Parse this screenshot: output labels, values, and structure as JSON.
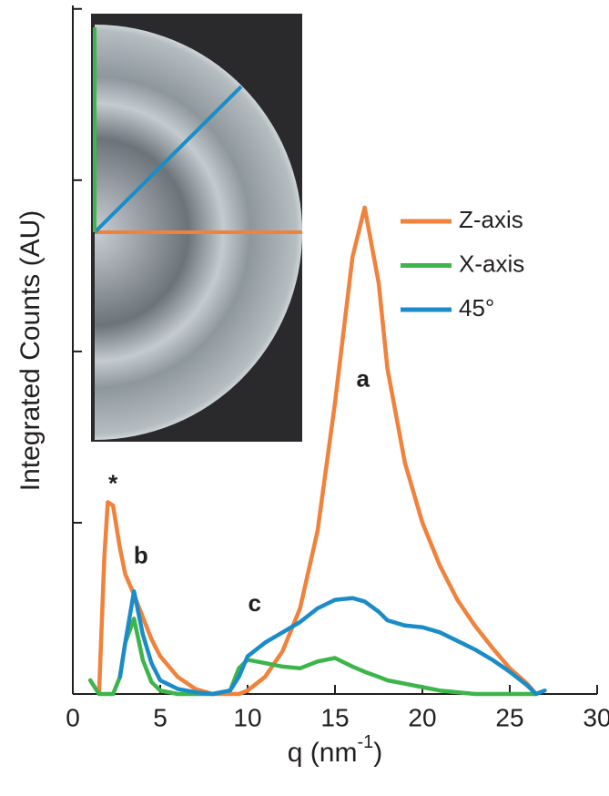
{
  "chart_data": {
    "type": "line",
    "xlabel": [
      "q (nm",
      "-1",
      ")"
    ],
    "ylabel": "Integrated Counts (AU)",
    "x": [
      1,
      1.5,
      1.8,
      2,
      2.3,
      2.7,
      3,
      3.5,
      4,
      4.5,
      5,
      6,
      7,
      8,
      9,
      9.5,
      10,
      11,
      12,
      13,
      14,
      15,
      16,
      16.7,
      17.5,
      18,
      19,
      20,
      21,
      22,
      23,
      24,
      25,
      26,
      26.5,
      27
    ],
    "series": [
      {
        "name": "Z-axis",
        "color": "#f0823c",
        "values": [
          null,
          0.0,
          0.8,
          1.12,
          1.1,
          0.85,
          0.7,
          0.58,
          0.45,
          0.32,
          0.22,
          0.1,
          0.03,
          0.0,
          0.0,
          0.0,
          0.02,
          0.1,
          0.25,
          0.5,
          0.95,
          1.7,
          2.55,
          2.84,
          2.4,
          1.9,
          1.35,
          1.0,
          0.75,
          0.55,
          0.4,
          0.27,
          0.15,
          0.06,
          0.0,
          null
        ]
      },
      {
        "name": "X-axis",
        "color": "#3db54a",
        "values": [
          0.08,
          0.0,
          0.0,
          0.0,
          0.0,
          0.1,
          0.3,
          0.44,
          0.2,
          0.07,
          0.02,
          0.0,
          0.0,
          0.0,
          0.02,
          0.15,
          0.2,
          0.18,
          0.16,
          0.15,
          0.19,
          0.21,
          0.16,
          0.13,
          0.1,
          0.08,
          0.06,
          0.04,
          0.02,
          0.01,
          0.0,
          0.0,
          0.0,
          0.0,
          0.0,
          null
        ]
      },
      {
        "name": "45°",
        "color": "#1b8cc8",
        "values": [
          null,
          null,
          null,
          null,
          null,
          0.1,
          0.3,
          0.6,
          0.35,
          0.18,
          0.08,
          0.03,
          0.01,
          0.0,
          0.02,
          0.1,
          0.22,
          0.3,
          0.36,
          0.42,
          0.5,
          0.55,
          0.56,
          0.54,
          0.48,
          0.43,
          0.4,
          0.39,
          0.36,
          0.31,
          0.26,
          0.2,
          0.13,
          0.05,
          0.0,
          0.02
        ]
      }
    ],
    "xlim": [
      0,
      30
    ],
    "xticks": [
      0,
      5,
      10,
      15,
      20,
      25,
      30
    ],
    "ylim": [
      0,
      4.02
    ],
    "yticks": [
      0,
      1,
      2,
      3,
      4
    ],
    "ytick_labels": false,
    "annotations": [
      {
        "text": "*",
        "x": 2.3,
        "y": 1.22
      },
      {
        "text": "b",
        "x": 3.9,
        "y": 0.8
      },
      {
        "text": "a",
        "x": 16.6,
        "y": 1.83
      },
      {
        "text": "c",
        "x": 10.4,
        "y": 0.52
      }
    ]
  }
}
